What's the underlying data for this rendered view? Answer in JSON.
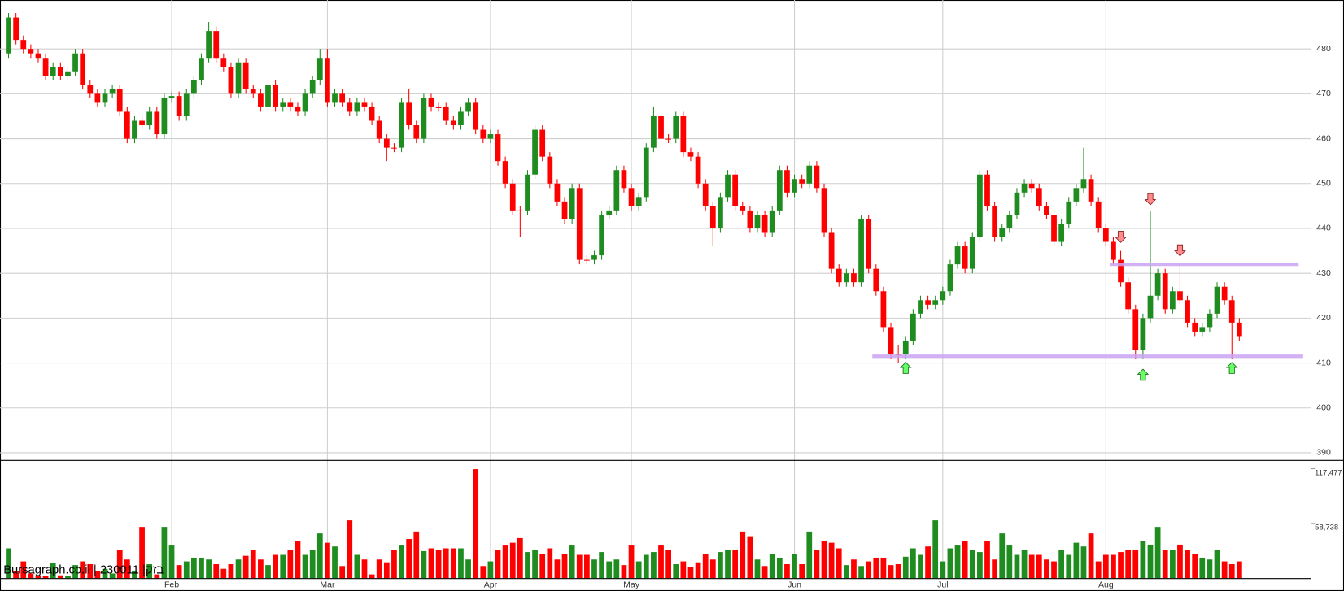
{
  "chart_data": {
    "type": "candlestick",
    "source": "Bursagraph.co.il | 230011 |בזק",
    "categories": [
      null,
      null,
      null,
      null,
      null,
      null,
      null,
      null,
      null,
      null,
      null,
      null,
      null,
      null,
      null,
      null,
      null,
      null,
      null,
      null,
      null,
      null,
      "Feb",
      null,
      null,
      null,
      null,
      null,
      null,
      null,
      null,
      null,
      null,
      null,
      null,
      null,
      null,
      null,
      null,
      null,
      null,
      null,
      null,
      "Mar",
      null,
      null,
      null,
      null,
      null,
      null,
      null,
      null,
      null,
      null,
      null,
      null,
      null,
      null,
      null,
      null,
      null,
      null,
      null,
      null,
      null,
      "Apr",
      null,
      null,
      null,
      null,
      null,
      null,
      null,
      null,
      null,
      null,
      null,
      null,
      null,
      null,
      null,
      null,
      null,
      null,
      "May",
      null,
      null,
      null,
      null,
      null,
      null,
      null,
      null,
      null,
      null,
      null,
      null,
      null,
      null,
      null,
      null,
      null,
      null,
      null,
      null,
      null,
      "Jun",
      null,
      null,
      null,
      null,
      null,
      null,
      null,
      null,
      null,
      null,
      null,
      null,
      null,
      null,
      null,
      null,
      null,
      null,
      null,
      "Jul",
      null,
      null,
      null,
      null,
      null,
      null,
      null,
      null,
      null,
      null,
      null,
      null,
      null,
      null,
      null,
      null,
      null,
      null,
      null,
      null,
      null,
      "Aug",
      null,
      null,
      null,
      null,
      null,
      null,
      null,
      null,
      null,
      null,
      null,
      null,
      null,
      null,
      null,
      null,
      null,
      null
    ],
    "up_color": "#1e8c1e",
    "down_color": "#ff0000",
    "open": [
      479,
      487,
      482,
      480,
      479,
      478,
      474,
      476,
      474,
      475,
      479,
      472,
      470,
      468,
      470,
      471,
      466,
      460,
      464,
      463,
      466,
      461,
      469,
      469.5,
      465,
      470,
      473,
      478,
      484,
      478,
      476,
      470,
      477,
      471,
      470,
      467,
      472,
      467,
      468,
      467,
      466,
      470,
      473,
      478,
      468,
      470,
      468,
      466,
      468,
      467,
      464,
      460,
      458,
      458,
      468,
      463,
      460,
      469,
      467,
      467,
      464,
      463,
      466,
      468,
      462,
      460,
      461,
      455,
      450,
      444,
      444,
      452,
      462,
      456,
      450,
      446,
      442,
      449,
      433,
      433,
      434,
      443,
      444,
      453,
      449,
      445,
      447,
      458,
      465,
      460,
      460,
      465,
      457,
      456,
      450,
      445,
      440,
      447,
      452,
      445,
      444,
      440,
      443,
      439,
      444,
      453,
      448,
      451,
      450,
      454,
      449,
      439,
      431,
      428,
      430,
      428,
      442,
      431,
      426,
      418,
      412,
      412,
      415,
      421,
      424,
      423,
      424,
      426,
      432,
      436,
      431,
      438,
      452,
      445,
      438,
      440,
      443,
      448,
      450,
      449,
      445,
      443,
      437,
      441,
      446,
      449,
      451,
      446,
      440,
      437,
      433,
      428,
      422,
      413,
      420,
      425,
      430,
      422,
      426,
      424,
      419,
      417,
      418,
      421,
      427,
      424,
      419
    ],
    "high": [
      488,
      488,
      483,
      481,
      480,
      479,
      477,
      477,
      476,
      480,
      480,
      473,
      471,
      471,
      472,
      472,
      467,
      465,
      465,
      467,
      467,
      470,
      470.5,
      470.5,
      471,
      474,
      479,
      486,
      485,
      479,
      477,
      478,
      478,
      472,
      471,
      473,
      473,
      469,
      469,
      468,
      471,
      474,
      480,
      480,
      471,
      471,
      469,
      469,
      469,
      468,
      465,
      461,
      459,
      469,
      471,
      464,
      470,
      470,
      468,
      468,
      465,
      467,
      469,
      469,
      463,
      462,
      462,
      456,
      451,
      445,
      453,
      463,
      463,
      457,
      451,
      447,
      450,
      450,
      434,
      435,
      444,
      445,
      454,
      454,
      450,
      448,
      459,
      467,
      466,
      461,
      466,
      466,
      458,
      457,
      451,
      446,
      448,
      453,
      453,
      446,
      445,
      444,
      444,
      445,
      454,
      454,
      452,
      452,
      455,
      455,
      450,
      440,
      432,
      431,
      431,
      443,
      443,
      432,
      427,
      419,
      414,
      416,
      422,
      425,
      425,
      425,
      427,
      433,
      437,
      437,
      439,
      453,
      453,
      446,
      441,
      444,
      449,
      451,
      451,
      450,
      446,
      444,
      442,
      447,
      450,
      458,
      452,
      447,
      441,
      438,
      435,
      429,
      423,
      421,
      444,
      431,
      431,
      427,
      432,
      425,
      420,
      419,
      422,
      428,
      428,
      425,
      420
    ],
    "low": [
      478,
      481,
      479,
      478,
      477,
      473,
      473,
      473,
      473,
      474,
      471,
      469,
      467,
      467,
      469,
      465,
      459,
      459,
      462,
      462,
      460,
      460,
      468,
      464,
      464,
      469,
      472,
      477,
      477,
      475,
      469,
      469,
      470,
      469,
      466,
      466,
      466,
      466,
      466,
      465,
      465,
      469,
      472,
      467,
      467,
      467,
      465,
      465,
      466,
      463,
      459,
      455,
      457,
      457,
      462,
      459,
      459,
      466,
      466,
      463,
      462,
      462,
      465,
      461,
      459,
      459,
      454,
      449,
      443,
      438,
      443,
      451,
      455,
      449,
      445,
      441,
      441,
      432,
      432,
      432,
      433,
      442,
      443,
      448,
      444,
      444,
      446,
      457,
      459,
      459,
      459,
      456,
      455,
      449,
      444,
      436,
      439,
      446,
      444,
      443,
      439,
      439,
      438,
      438,
      443,
      447,
      447,
      449,
      449,
      448,
      438,
      430,
      427,
      427,
      427,
      427,
      430,
      425,
      417,
      411,
      410,
      411,
      414,
      420,
      422,
      422,
      423,
      425,
      431,
      430,
      430,
      437,
      444,
      437,
      437,
      439,
      442,
      447,
      448,
      444,
      442,
      436,
      436,
      440,
      445,
      448,
      445,
      439,
      436,
      432,
      427,
      421,
      411,
      411,
      419,
      424,
      421,
      421,
      423,
      418,
      416,
      416,
      417,
      420,
      423,
      411,
      415
    ],
    "close": [
      487,
      482,
      480,
      479,
      478,
      474,
      476,
      474,
      475,
      479,
      472,
      470,
      468,
      470,
      471,
      466,
      460,
      464,
      463,
      466,
      461,
      469,
      469.5,
      465,
      470,
      473,
      478,
      484,
      478,
      476,
      470,
      477,
      471,
      470,
      467,
      472,
      467,
      468,
      467,
      466,
      470,
      473,
      478,
      468,
      470,
      468,
      466,
      468,
      467,
      464,
      460,
      458,
      458,
      468,
      463,
      460,
      469,
      467,
      467,
      464,
      463,
      466,
      468,
      462,
      460,
      461,
      455,
      450,
      444,
      444,
      452,
      462,
      456,
      450,
      446,
      442,
      449,
      433,
      433,
      434,
      443,
      444,
      453,
      449,
      445,
      447,
      458,
      465,
      460,
      460,
      465,
      457,
      456,
      450,
      445,
      440,
      447,
      452,
      445,
      444,
      440,
      443,
      439,
      444,
      453,
      448,
      451,
      450,
      454,
      449,
      439,
      431,
      428,
      430,
      428,
      442,
      431,
      426,
      418,
      412,
      412,
      415,
      421,
      424,
      423,
      424,
      426,
      432,
      436,
      431,
      438,
      452,
      445,
      438,
      440,
      443,
      448,
      450,
      449,
      445,
      443,
      437,
      441,
      446,
      449,
      451,
      446,
      440,
      437,
      433,
      428,
      422,
      413,
      420,
      425,
      430,
      422,
      426,
      424,
      419,
      417,
      418,
      421,
      427,
      424,
      419,
      416
    ],
    "ylim": [
      388.4,
      490.9
    ],
    "yticks": [
      390,
      400,
      410,
      420,
      430,
      440,
      450,
      460,
      470,
      480
    ],
    "grid": true,
    "volume": {
      "values": [
        32000,
        8000,
        18000,
        5000,
        3000,
        2000,
        16000,
        3000,
        2000,
        14000,
        18000,
        15000,
        8000,
        10000,
        5000,
        30000,
        20000,
        8000,
        55000,
        15000,
        4000,
        55000,
        35000,
        14000,
        18000,
        22000,
        22000,
        20000,
        15000,
        10000,
        15000,
        20000,
        24000,
        30000,
        20000,
        14000,
        25000,
        25000,
        30000,
        40000,
        25000,
        30000,
        48000,
        38000,
        34000,
        13000,
        62000,
        25000,
        20000,
        4000,
        20000,
        17000,
        30000,
        35000,
        42000,
        50000,
        29000,
        32000,
        30000,
        32000,
        32000,
        32000,
        20000,
        117000,
        13000,
        18000,
        30000,
        35000,
        38000,
        43000,
        28000,
        30000,
        26000,
        32000,
        20000,
        26000,
        35000,
        25000,
        25000,
        20000,
        28000,
        18000,
        20000,
        14000,
        35000,
        18000,
        25000,
        28000,
        35000,
        30000,
        15000,
        18000,
        12000,
        17000,
        26000,
        20000,
        28000,
        30000,
        30000,
        50000,
        45000,
        20000,
        13000,
        26000,
        22000,
        15000,
        26000,
        15000,
        50000,
        30000,
        40000,
        38000,
        32000,
        14000,
        20000,
        13000,
        18000,
        22000,
        22000,
        14000,
        15000,
        23000,
        32000,
        25000,
        34000,
        62000,
        18000,
        32000,
        35000,
        40000,
        30000,
        28000,
        40000,
        20000,
        48000,
        35000,
        25000,
        30000,
        25000,
        25000,
        20000,
        18000,
        30000,
        25000,
        38000,
        34000,
        48000,
        18000,
        25000,
        25000,
        28000,
        30000,
        30000,
        40000,
        36000,
        55000,
        30000,
        30000,
        36000,
        30000,
        26000,
        22000,
        20000,
        30000,
        18000,
        15000,
        18000
      ],
      "ylim": [
        0,
        125000
      ],
      "yticks": [
        {
          "value": 117477,
          "label": "117,477"
        },
        {
          "value": 58738,
          "label": "58,738"
        }
      ]
    },
    "levels": [
      {
        "value": 411.5,
        "from": 116.5,
        "to": 174.5,
        "color": "#c9a3f2"
      },
      {
        "value": 432,
        "from": 148.5,
        "to": 174
      }
    ],
    "signals": [
      {
        "kind": "up",
        "index": 121,
        "value": 408.8,
        "color": "#66ff66"
      },
      {
        "kind": "up",
        "index": 153,
        "value": 407.3,
        "color": "#66ff66"
      },
      {
        "kind": "up",
        "index": 165,
        "value": 408.8,
        "color": "#66ff66"
      },
      {
        "kind": "down",
        "index": 150,
        "value": 438.2,
        "color": "#ff8c8c"
      },
      {
        "kind": "down",
        "index": 154,
        "value": 446.6,
        "color": "#ff8c8c"
      },
      {
        "kind": "down",
        "index": 158,
        "value": 435.2,
        "color": "#ff8c8c"
      }
    ]
  }
}
